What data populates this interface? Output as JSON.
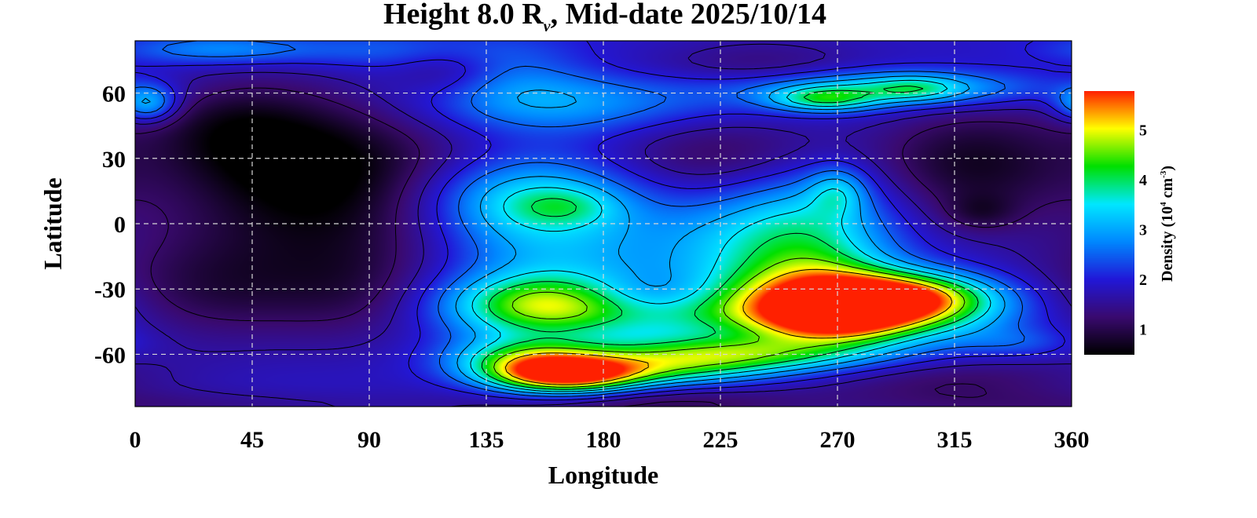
{
  "chart_data": {
    "type": "heatmap",
    "title": {
      "prefix": "Height 8.0 R",
      "subscript": "v",
      "suffix": ", Mid-date 2025/10/14"
    },
    "xlabel": "Longitude",
    "ylabel": "Latitude",
    "xlim": [
      0,
      360
    ],
    "ylim": [
      -84,
      84
    ],
    "xticks": [
      0,
      45,
      90,
      135,
      180,
      225,
      270,
      315,
      360
    ],
    "yticks": [
      60,
      30,
      0,
      -30,
      -60
    ],
    "grid": true,
    "colorbar": {
      "label": {
        "prefix": "Density (10",
        "exp1": "4",
        "mid": " cm",
        "exp2": "-3",
        "suffix": ")"
      },
      "range": [
        0.5,
        5.8
      ],
      "ticks": [
        1,
        2,
        3,
        4,
        5
      ],
      "colormap": [
        "#000000",
        "#3a0a70",
        "#2218d8",
        "#0088ff",
        "#00e8ff",
        "#00e000",
        "#ffff00",
        "#ff2000"
      ]
    },
    "background_level": 1.9,
    "features": [
      {
        "lon": 75,
        "lat": 20,
        "slon": 45,
        "slat": 30,
        "value": -1.4
      },
      {
        "lon": 60,
        "lat": 30,
        "slon": 25,
        "slat": 18,
        "value": -0.3
      },
      {
        "lon": 30,
        "lat": -30,
        "slon": 32,
        "slat": 18,
        "value": -0.8
      },
      {
        "lon": 85,
        "lat": -32,
        "slon": 22,
        "slat": 18,
        "value": -0.5
      },
      {
        "lon": 35,
        "lat": 45,
        "slon": 22,
        "slat": 15,
        "value": -0.6
      },
      {
        "lon": 120,
        "lat": 70,
        "slon": 15,
        "slat": 9,
        "value": -0.7
      },
      {
        "lon": 175,
        "lat": 70,
        "slon": 25,
        "slat": 10,
        "value": -0.5
      },
      {
        "lon": 240,
        "lat": 72,
        "slon": 30,
        "slat": 9,
        "value": -0.6
      },
      {
        "lon": 228,
        "lat": 30,
        "slon": 35,
        "slat": 18,
        "value": -1.0
      },
      {
        "lon": 322,
        "lat": 28,
        "slon": 28,
        "slat": 20,
        "value": -1.1
      },
      {
        "lon": 325,
        "lat": 5,
        "slon": 10,
        "slat": 6,
        "value": -0.5
      },
      {
        "lon": 200,
        "lat": -33,
        "slon": 20,
        "slat": 7,
        "value": -0.8
      },
      {
        "lon": 315,
        "lat": -72,
        "slon": 40,
        "slat": 10,
        "value": -0.7
      },
      {
        "lon": 195,
        "lat": -82,
        "slon": 45,
        "slat": 8,
        "value": -0.9
      },
      {
        "lon": 20,
        "lat": -84,
        "slon": 60,
        "slat": 5,
        "value": -0.4
      },
      {
        "lon": 5,
        "lat": 55,
        "slon": 8,
        "slat": 6,
        "value": 1.5
      },
      {
        "lon": 30,
        "lat": 80,
        "slon": 25,
        "slat": 5,
        "value": 0.9
      },
      {
        "lon": 95,
        "lat": 80,
        "slon": 35,
        "slat": 6,
        "value": 0.6
      },
      {
        "lon": 150,
        "lat": 62,
        "slon": 35,
        "slat": 14,
        "value": 1.2
      },
      {
        "lon": 200,
        "lat": 55,
        "slon": 50,
        "slat": 10,
        "value": 0.6
      },
      {
        "lon": 290,
        "lat": 62,
        "slon": 40,
        "slat": 6,
        "value": 1.6
      },
      {
        "lon": 265,
        "lat": 57,
        "slon": 14,
        "slat": 4,
        "value": 1.5
      },
      {
        "lon": 300,
        "lat": 62,
        "slon": 12,
        "slat": 4,
        "value": 0.8
      },
      {
        "lon": 150,
        "lat": 12,
        "slon": 30,
        "slat": 14,
        "value": 1.6
      },
      {
        "lon": 165,
        "lat": 8,
        "slon": 14,
        "slat": 6,
        "value": 0.6
      },
      {
        "lon": 235,
        "lat": -8,
        "slon": 28,
        "slat": 22,
        "value": 1.2
      },
      {
        "lon": 262,
        "lat": 2,
        "slon": 22,
        "slat": 20,
        "value": 1.1
      },
      {
        "lon": 270,
        "lat": 15,
        "slon": 8,
        "slat": 8,
        "value": 1.0
      },
      {
        "lon": 160,
        "lat": -15,
        "slon": 30,
        "slat": 20,
        "value": 1.0
      },
      {
        "lon": 155,
        "lat": -38,
        "slon": 25,
        "slat": 10,
        "value": 2.2
      },
      {
        "lon": 230,
        "lat": -40,
        "slon": 45,
        "slat": 10,
        "value": 1.8
      },
      {
        "lon": 262,
        "lat": -30,
        "slon": 22,
        "slat": 14,
        "value": 1.7
      },
      {
        "lon": 292,
        "lat": -34,
        "slon": 25,
        "slat": 8,
        "value": 3.6
      },
      {
        "lon": 270,
        "lat": -45,
        "slon": 20,
        "slat": 7,
        "value": 2.0
      },
      {
        "lon": 230,
        "lat": -60,
        "slon": 40,
        "slat": 6,
        "value": 2.2
      },
      {
        "lon": 165,
        "lat": -70,
        "slon": 20,
        "slat": 6,
        "value": 3.6
      },
      {
        "lon": 150,
        "lat": -62,
        "slon": 20,
        "slat": 7,
        "value": 1.8
      },
      {
        "lon": 200,
        "lat": -68,
        "slon": 30,
        "slat": 6,
        "value": 1.6
      },
      {
        "lon": 305,
        "lat": -45,
        "slon": 30,
        "slat": 10,
        "value": 0.8
      },
      {
        "lon": 340,
        "lat": -55,
        "slon": 15,
        "slat": 5,
        "value": 0.5
      }
    ],
    "contour_levels": [
      1.2,
      1.6,
      2.0,
      2.5,
      3.0,
      3.5,
      4.0,
      4.6,
      5.2
    ]
  }
}
